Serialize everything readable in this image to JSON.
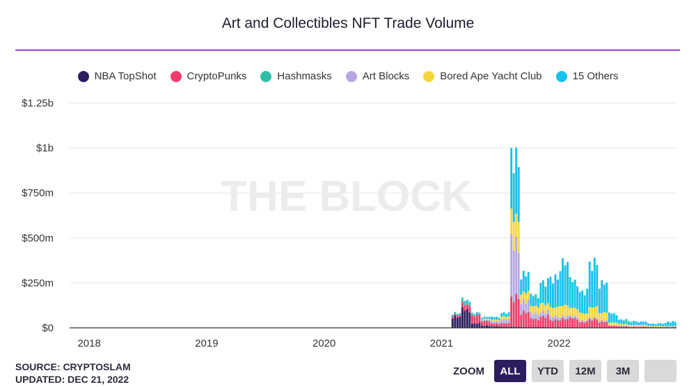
{
  "title": "Art and Collectibles NFT Trade Volume",
  "source_line": "SOURCE: CRYPTOSLAM",
  "updated_line": "UPDATED: DEC 21, 2022",
  "watermark": "THE BLOCK",
  "zoom": {
    "label": "ZOOM",
    "buttons": [
      {
        "label": "ALL",
        "active": true
      },
      {
        "label": "YTD",
        "active": false
      },
      {
        "label": "12M",
        "active": false
      },
      {
        "label": "3M",
        "active": false
      },
      {
        "label": "",
        "active": false
      }
    ]
  },
  "chart_data": {
    "type": "bar",
    "stacked": true,
    "title": "Art and Collectibles NFT Trade Volume",
    "grid": true,
    "legend_position": "top",
    "x_tick_labels": [
      "2018",
      "2019",
      "2020",
      "2021",
      "2022"
    ],
    "y_tick_labels": [
      "$0",
      "$250m",
      "$500m",
      "$750m",
      "$1b",
      "$1.25b"
    ],
    "y_ticks": [
      0,
      250,
      500,
      750,
      1000,
      1250
    ],
    "ylim": [
      0,
      1250
    ],
    "unit": "USD millions (weekly)",
    "x_start": "2017-11",
    "x_end": "2022-12",
    "categories": [
      "2021-02",
      "2021-03",
      "2021-04",
      "2021-05",
      "2021-06",
      "2021-07",
      "2021-08",
      "2021-09",
      "2021-10",
      "2021-11",
      "2021-12",
      "2022-01",
      "2022-02",
      "2022-03",
      "2022-04",
      "2022-05",
      "2022-06",
      "2022-07",
      "2022-08",
      "2022-09",
      "2022-10",
      "2022-11",
      "2022-12"
    ],
    "series": [
      {
        "name": "NBA TopShot",
        "color": "#2b1d5e",
        "values": [
          60,
          100,
          25,
          12,
          8,
          6,
          6,
          4,
          4,
          4,
          3,
          3,
          3,
          2,
          2,
          2,
          1,
          1,
          1,
          1,
          1,
          1,
          1
        ]
      },
      {
        "name": "CryptoPunks",
        "color": "#ef3e6a",
        "values": [
          10,
          30,
          45,
          25,
          15,
          20,
          160,
          80,
          45,
          60,
          40,
          45,
          50,
          30,
          45,
          30,
          10,
          8,
          5,
          5,
          4,
          3,
          3
        ]
      },
      {
        "name": "Hashmasks",
        "color": "#2fbfa8",
        "values": [
          5,
          15,
          5,
          3,
          2,
          2,
          3,
          2,
          1,
          1,
          1,
          1,
          1,
          1,
          1,
          1,
          0,
          0,
          0,
          0,
          0,
          0,
          0
        ]
      },
      {
        "name": "Art Blocks",
        "color": "#b7a8e4",
        "values": [
          0,
          0,
          0,
          5,
          12,
          20,
          300,
          60,
          30,
          25,
          20,
          15,
          10,
          8,
          8,
          6,
          3,
          2,
          2,
          2,
          1,
          1,
          1
        ]
      },
      {
        "name": "Bored Ape Yacht Club",
        "color": "#f5d63d",
        "values": [
          0,
          0,
          0,
          5,
          8,
          15,
          150,
          50,
          40,
          45,
          50,
          60,
          45,
          40,
          60,
          45,
          15,
          10,
          8,
          8,
          5,
          5,
          4
        ]
      },
      {
        "name": "15 Others",
        "color": "#18c2ea",
        "values": [
          5,
          10,
          8,
          10,
          15,
          20,
          320,
          100,
          60,
          120,
          160,
          230,
          150,
          120,
          240,
          160,
          50,
          25,
          20,
          18,
          12,
          15,
          25
        ]
      }
    ]
  }
}
